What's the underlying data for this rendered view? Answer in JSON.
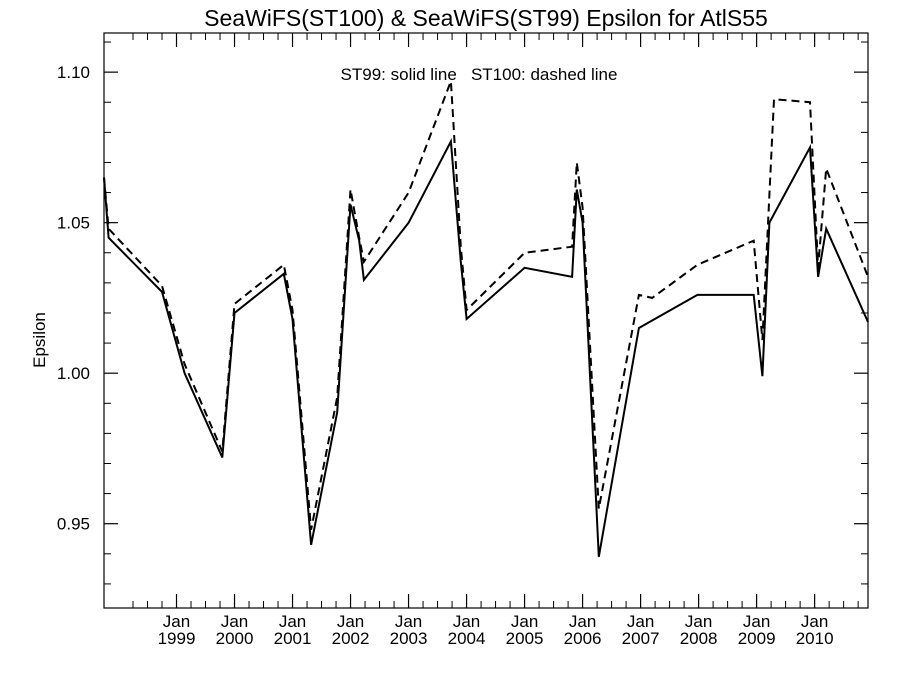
{
  "chart_data": {
    "type": "line",
    "title": "SeaWiFS(ST100) & SeaWiFS(ST99)  Epsilon for AtlS55",
    "annotation": "ST99: solid line   ST100: dashed line",
    "xlabel": "",
    "ylabel": "Epsilon",
    "xlim": [
      1997.75,
      2010.92
    ],
    "ylim": [
      0.922,
      1.113
    ],
    "yticks": [
      0.95,
      1.0,
      1.05,
      1.1
    ],
    "ytick_labels": [
      "0.95",
      "1.00",
      "1.05",
      "1.10"
    ],
    "xticks": [
      {
        "x": 1999.0,
        "month": "Jan",
        "year": "1999"
      },
      {
        "x": 2000.0,
        "month": "Jan",
        "year": "2000"
      },
      {
        "x": 2001.0,
        "month": "Jan",
        "year": "2001"
      },
      {
        "x": 2002.0,
        "month": "Jan",
        "year": "2002"
      },
      {
        "x": 2003.0,
        "month": "Jan",
        "year": "2003"
      },
      {
        "x": 2004.0,
        "month": "Jan",
        "year": "2004"
      },
      {
        "x": 2005.0,
        "month": "Jan",
        "year": "2005"
      },
      {
        "x": 2006.0,
        "month": "Jan",
        "year": "2006"
      },
      {
        "x": 2007.0,
        "month": "Jan",
        "year": "2007"
      },
      {
        "x": 2008.0,
        "month": "Jan",
        "year": "2008"
      },
      {
        "x": 2009.0,
        "month": "Jan",
        "year": "2009"
      },
      {
        "x": 2010.0,
        "month": "Jan",
        "year": "2010"
      }
    ],
    "grid": false,
    "series": [
      {
        "name": "ST99",
        "style": "solid",
        "color": "#000000",
        "points": [
          [
            1997.75,
            1.065
          ],
          [
            1997.83,
            1.045
          ],
          [
            1998.75,
            1.027
          ],
          [
            1999.14,
            1.0
          ],
          [
            1999.79,
            0.972
          ],
          [
            2000.0,
            1.02
          ],
          [
            2000.85,
            1.033
          ],
          [
            2001.0,
            1.018
          ],
          [
            2001.32,
            0.943
          ],
          [
            2001.77,
            0.987
          ],
          [
            2002.0,
            1.056
          ],
          [
            2002.15,
            1.044
          ],
          [
            2002.23,
            1.031
          ],
          [
            2003.0,
            1.05
          ],
          [
            2003.73,
            1.077
          ],
          [
            2003.9,
            1.037
          ],
          [
            2004.0,
            1.018
          ],
          [
            2005.0,
            1.035
          ],
          [
            2005.82,
            1.032
          ],
          [
            2005.9,
            1.061
          ],
          [
            2006.0,
            1.05
          ],
          [
            2006.28,
            0.939
          ],
          [
            2006.97,
            1.015
          ],
          [
            2007.98,
            1.026
          ],
          [
            2008.95,
            1.026
          ],
          [
            2009.1,
            0.999
          ],
          [
            2009.22,
            1.05
          ],
          [
            2009.92,
            1.075
          ],
          [
            2010.06,
            1.032
          ],
          [
            2010.2,
            1.048
          ],
          [
            2010.92,
            1.017
          ]
        ]
      },
      {
        "name": "ST100",
        "style": "dashed",
        "color": "#000000",
        "points": [
          [
            1997.75,
            1.065
          ],
          [
            1997.83,
            1.048
          ],
          [
            1998.75,
            1.029
          ],
          [
            1999.14,
            1.003
          ],
          [
            1999.79,
            0.974
          ],
          [
            2000.0,
            1.023
          ],
          [
            2000.85,
            1.036
          ],
          [
            2001.0,
            1.021
          ],
          [
            2001.32,
            0.948
          ],
          [
            2001.77,
            0.992
          ],
          [
            2002.0,
            1.061
          ],
          [
            2002.15,
            1.045
          ],
          [
            2002.23,
            1.037
          ],
          [
            2003.0,
            1.06
          ],
          [
            2003.73,
            1.097
          ],
          [
            2003.9,
            1.042
          ],
          [
            2004.0,
            1.021
          ],
          [
            2005.0,
            1.04
          ],
          [
            2005.82,
            1.042
          ],
          [
            2005.9,
            1.07
          ],
          [
            2006.0,
            1.055
          ],
          [
            2006.28,
            0.955
          ],
          [
            2006.97,
            1.026
          ],
          [
            2007.2,
            1.025
          ],
          [
            2007.98,
            1.036
          ],
          [
            2008.95,
            1.044
          ],
          [
            2009.1,
            1.011
          ],
          [
            2009.3,
            1.091
          ],
          [
            2009.92,
            1.09
          ],
          [
            2010.06,
            1.035
          ],
          [
            2010.2,
            1.068
          ],
          [
            2010.92,
            1.032
          ]
        ]
      }
    ]
  }
}
